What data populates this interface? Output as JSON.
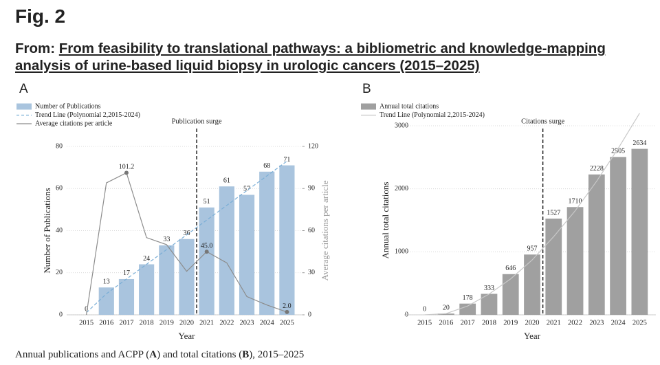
{
  "header": {
    "fig_label": "Fig. 2",
    "from_label": "From:",
    "article_title": "From feasibility to translational pathways: a bibliometric and knowledge-mapping analysis of urine-based liquid biopsy in urologic cancers (2015–2025)"
  },
  "caption": {
    "parts": [
      "Annual publications and ACPP (",
      "A",
      ") and total citations (",
      "B",
      "), 2015–2025"
    ]
  },
  "chart_data": [
    {
      "type": "bar",
      "panel_label": "A",
      "categories": [
        "2015",
        "2016",
        "2017",
        "2018",
        "2019",
        "2020",
        "2021",
        "2022",
        "2023",
        "2024",
        "2025"
      ],
      "x_label": "Year",
      "y_label": "Number of Publications",
      "y2_label": "Average citations per article",
      "annotation": "Publication surge",
      "ylim": [
        0,
        80
      ],
      "yticks": [
        0,
        20,
        40,
        60,
        80
      ],
      "y2lim": [
        0,
        120
      ],
      "y2ticks": [
        0,
        30,
        60,
        90,
        120
      ],
      "grid": true,
      "series": [
        {
          "name": "Number of Publications",
          "kind": "bar",
          "color": "#a9c4de",
          "values": [
            0,
            13,
            17,
            24,
            33,
            36,
            51,
            61,
            57,
            68,
            71
          ]
        },
        {
          "name": "Trend Line (Polynomial 2,2015-2024)",
          "kind": "line",
          "line_style": "dashed",
          "color": "#7aaed6",
          "values": [
            1,
            10,
            17,
            24,
            31,
            38,
            45,
            52,
            59,
            66,
            73
          ]
        },
        {
          "name": "Average citations per article",
          "kind": "line",
          "axis": "y2",
          "color": "#8c8c8c",
          "values": [
            0,
            94,
            101.2,
            55,
            50,
            31,
            45.0,
            37,
            13,
            7,
            2.0
          ],
          "value_labels": [
            null,
            null,
            "101.2",
            null,
            null,
            null,
            "45.0",
            null,
            null,
            null,
            "2.0"
          ]
        }
      ]
    },
    {
      "type": "bar",
      "panel_label": "B",
      "categories": [
        "2015",
        "2016",
        "2017",
        "2018",
        "2019",
        "2020",
        "2021",
        "2022",
        "2023",
        "2024",
        "2025"
      ],
      "x_label": "Year",
      "y_label": "Annual total citations",
      "annotation": "Citations surge",
      "ylim": [
        0,
        3000
      ],
      "yticks": [
        0,
        1000,
        2000,
        3000
      ],
      "grid": true,
      "series": [
        {
          "name": "Annual total citations",
          "kind": "bar",
          "color": "#a0a0a0",
          "values": [
            0,
            20,
            178,
            333,
            646,
            957,
            1527,
            1710,
            2228,
            2505,
            2634
          ]
        },
        {
          "name": "Trend Line (Polynomial 2,2015-2024)",
          "kind": "line",
          "line_style": "solid",
          "color": "#c8c8c8",
          "values": [
            0,
            20,
            140,
            330,
            570,
            870,
            1240,
            1650,
            2120,
            2640,
            3200
          ]
        }
      ]
    }
  ]
}
